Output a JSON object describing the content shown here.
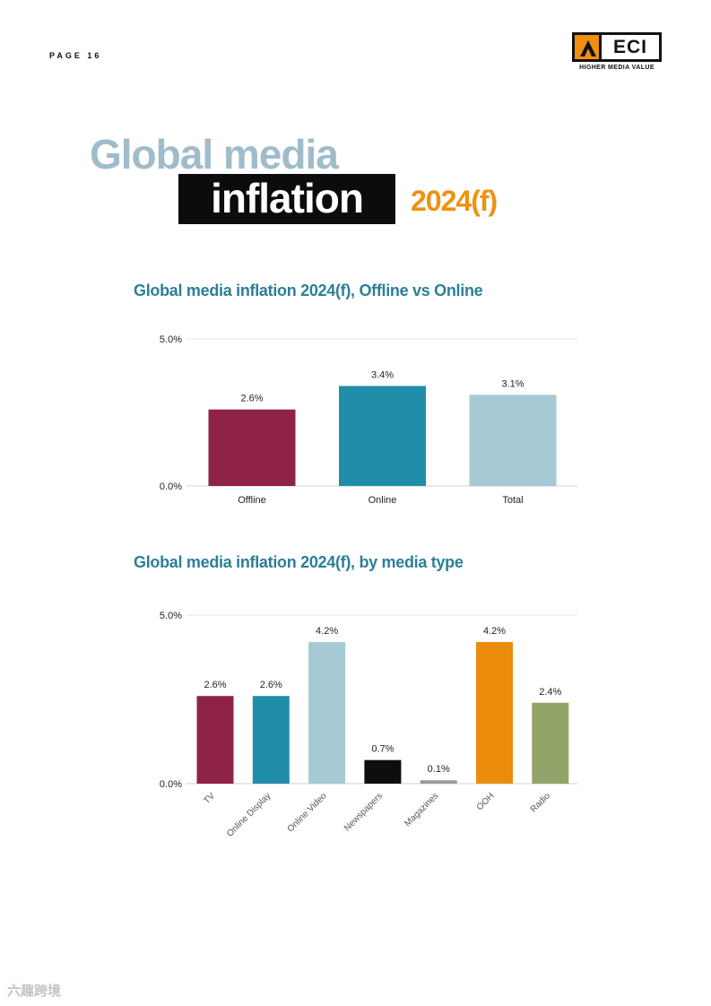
{
  "page": {
    "label": "PAGE 16"
  },
  "logo": {
    "name": "ECI",
    "tagline": "HIGHER MEDIA VALUE",
    "accent": "#ee8f10"
  },
  "heading": {
    "line1": "Global media",
    "line2": "inflation",
    "line3": "2024(f)"
  },
  "watermark": "六趣跨境",
  "chart_data": [
    {
      "type": "bar",
      "title": "Global media inflation 2024(f), Offline vs Online",
      "categories": [
        "Offline",
        "Online",
        "Total"
      ],
      "values": [
        2.6,
        3.4,
        3.1
      ],
      "value_labels": [
        "2.6%",
        "3.4%",
        "3.1%"
      ],
      "colors": [
        "#8e2346",
        "#218da9",
        "#a5cad4"
      ],
      "ylim": [
        0,
        5
      ],
      "yticks": [
        0,
        5
      ],
      "ytick_labels": [
        "0.0%",
        "5.0%"
      ],
      "xlabel": "",
      "ylabel": "",
      "grid": true
    },
    {
      "type": "bar",
      "title": "Global media inflation 2024(f), by media type",
      "categories": [
        "TV",
        "Online Display",
        "Online Video",
        "Newspapers",
        "Magazines",
        "OOH",
        "Radio"
      ],
      "values": [
        2.6,
        2.6,
        4.2,
        0.7,
        0.1,
        4.2,
        2.4
      ],
      "value_labels": [
        "2.6%",
        "2.6%",
        "4.2%",
        "0.7%",
        "0.1%",
        "4.2%",
        "2.4%"
      ],
      "colors": [
        "#8e2346",
        "#218da9",
        "#a5cad4",
        "#0e0e0c",
        "#9a9a9a",
        "#eb8c0c",
        "#93a46a"
      ],
      "ylim": [
        0,
        5
      ],
      "yticks": [
        0,
        5
      ],
      "ytick_labels": [
        "0.0%",
        "5.0%"
      ],
      "xlabel": "",
      "ylabel": "",
      "grid": true
    }
  ]
}
